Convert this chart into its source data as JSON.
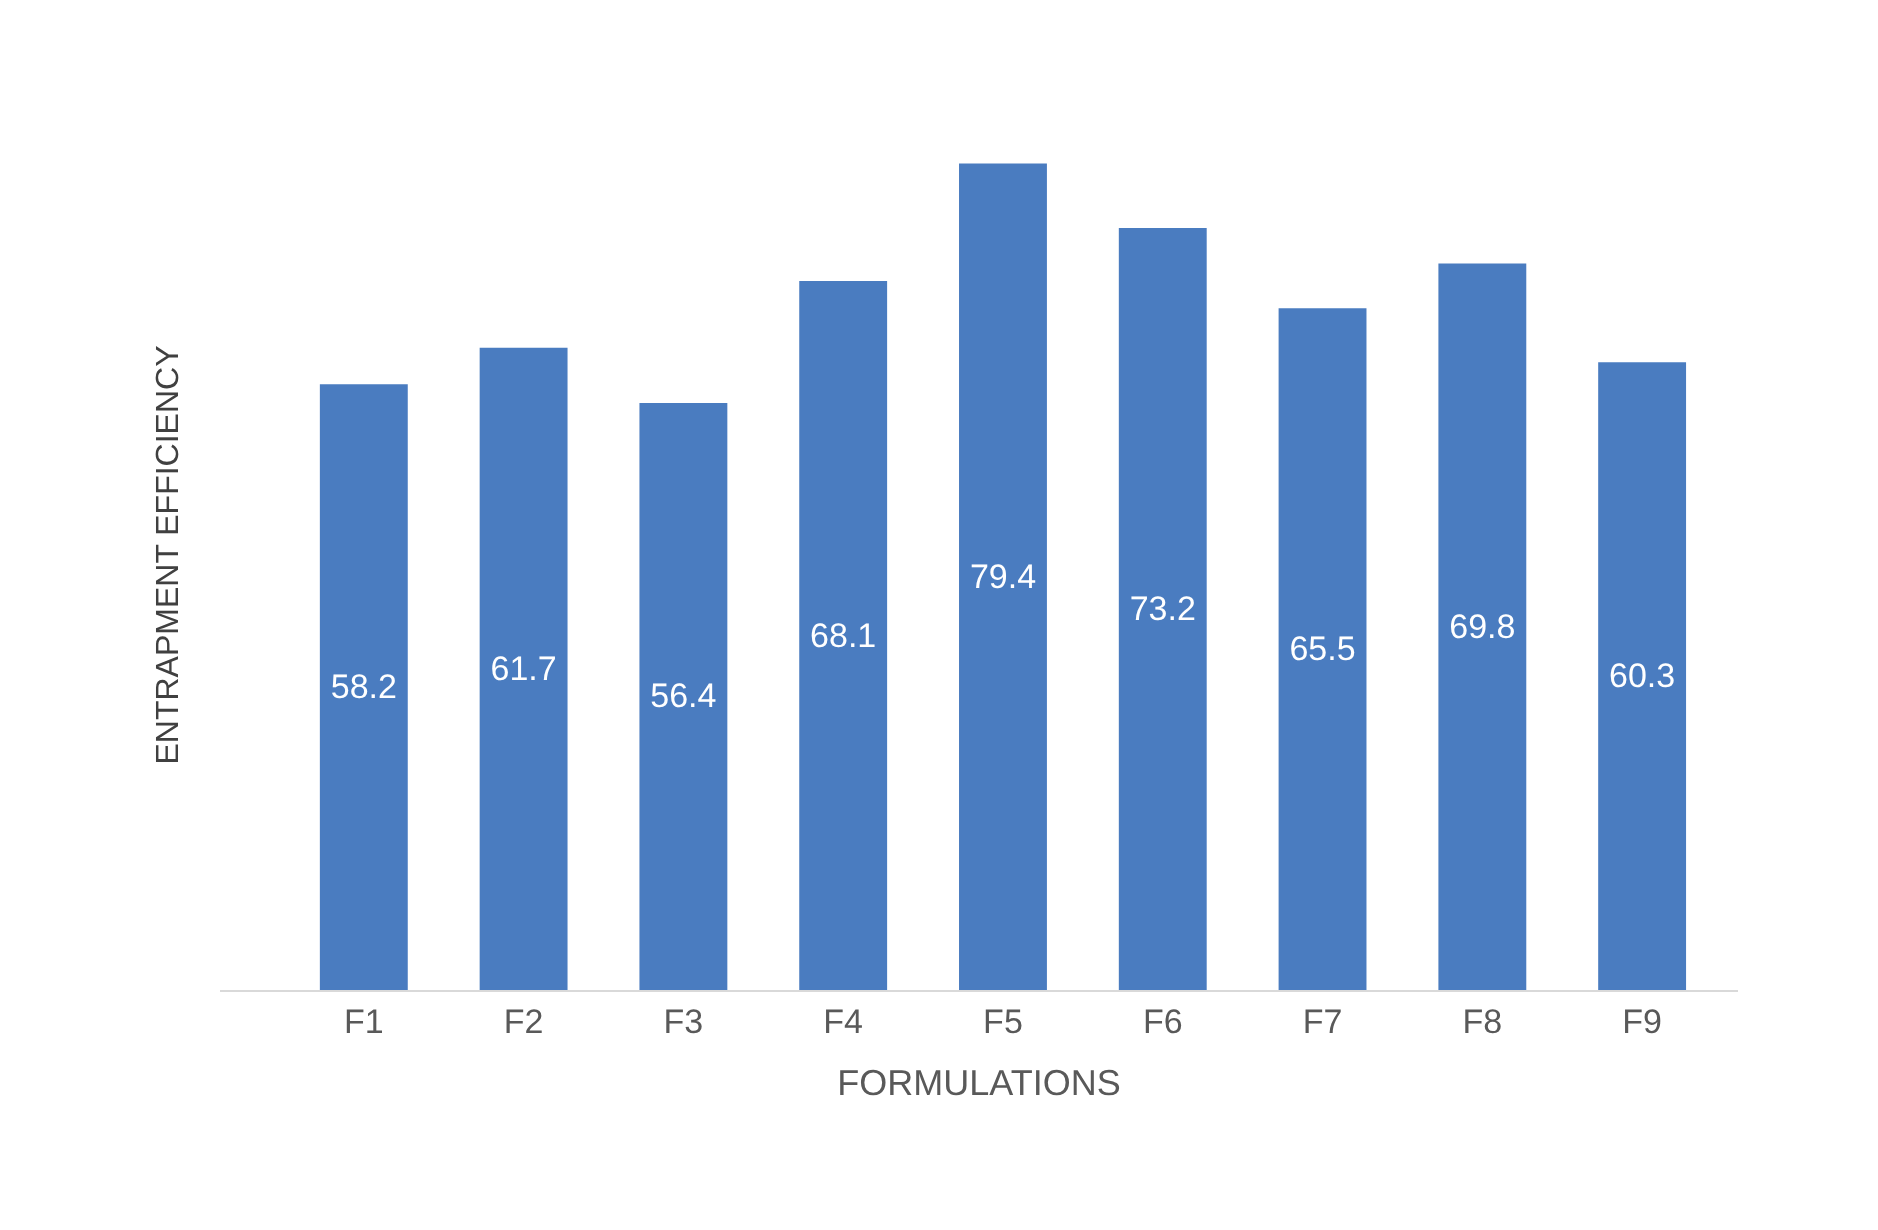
{
  "chart_data": {
    "type": "bar",
    "xlabel": "FORMULATIONS",
    "ylabel": "ENTRAPMENT EFFICIENCY",
    "categories": [
      "F1",
      "F2",
      "F3",
      "F4",
      "F5",
      "F6",
      "F7",
      "F8",
      "F9"
    ],
    "values": [
      58.2,
      61.7,
      56.4,
      68.1,
      79.4,
      73.2,
      65.5,
      69.8,
      60.3
    ],
    "color": "#4a7cc0",
    "data_labels": true,
    "tick_labels": "x"
  }
}
